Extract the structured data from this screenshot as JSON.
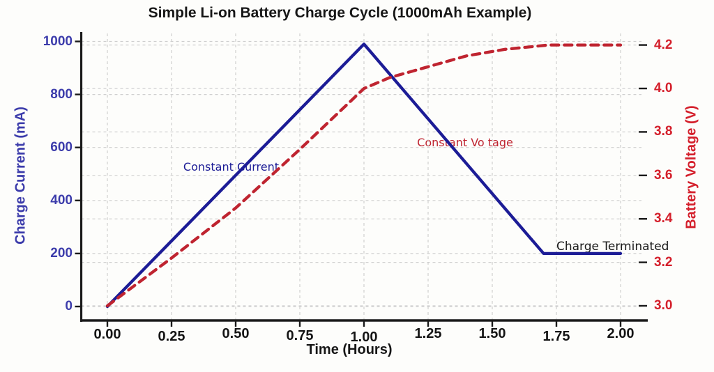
{
  "figure": {
    "title": "Simple Li-on Battery Charge Cycle (1000mAh Example)"
  },
  "chart_data": {
    "type": "line",
    "title": "Simple Li-on Battery Charge Cycle (1000mAh Example)",
    "xlabel": "Time (Hours)",
    "ylabel_left": "Charge Current (mA)",
    "ylabel_right": "Battery Voltage (V)",
    "x_tick_labels": [
      "0.00",
      "0.25",
      "0.50",
      "0.75",
      "1.00",
      "1.25",
      "1.50",
      "1.75",
      "2.00"
    ],
    "x_tick_values": [
      0,
      0.25,
      0.5,
      0.75,
      1.0,
      1.25,
      1.5,
      1.75,
      2.0
    ],
    "y_left_tick_labels": [
      "0",
      "200",
      "400",
      "600",
      "800",
      "1000"
    ],
    "y_left_tick_values": [
      0,
      200,
      400,
      600,
      800,
      1000
    ],
    "y_right_tick_labels": [
      "3.0",
      "3.2",
      "3.4",
      "3.6",
      "3.8",
      "4.0",
      "4.2"
    ],
    "y_right_tick_values": [
      3.0,
      3.2,
      3.4,
      3.6,
      3.8,
      4.0,
      4.2
    ],
    "xlim": [
      0,
      2.0
    ],
    "ylim_left": [
      0,
      1000
    ],
    "ylim_right": [
      3.0,
      4.2
    ],
    "grid": true,
    "legend_position": "none",
    "colors": {
      "current_line": "#1c1c96",
      "voltage_line": "#bf2430",
      "left_axis_text": "#3c3cab",
      "right_axis_text": "#d41f2b",
      "annotation_black": "#1a1a1a",
      "grid": "#cfcfcf",
      "spine": "#1a1a1a"
    },
    "series": [
      {
        "name": "Charge Current",
        "axis": "left",
        "unit": "mA",
        "style": "solid",
        "color": "#1c1c96",
        "points": [
          [
            0,
            0
          ],
          [
            1.0,
            990
          ],
          [
            1.7,
            200
          ],
          [
            2.0,
            200
          ]
        ]
      },
      {
        "name": "Battery Voltage",
        "axis": "right",
        "unit": "V",
        "style": "dashed",
        "color": "#bf2430",
        "points": [
          [
            0,
            3.0
          ],
          [
            0.25,
            3.22
          ],
          [
            0.5,
            3.45
          ],
          [
            0.75,
            3.72
          ],
          [
            1.0,
            4.0
          ],
          [
            1.1,
            4.05
          ],
          [
            1.25,
            4.1
          ],
          [
            1.4,
            4.15
          ],
          [
            1.55,
            4.18
          ],
          [
            1.72,
            4.2
          ],
          [
            2.0,
            4.2
          ]
        ]
      }
    ],
    "annotations": [
      {
        "text": "Constant Current",
        "x": 0.296,
        "y_axis": "left",
        "y": 520,
        "color": "#1c1c96",
        "size": 16
      },
      {
        "text": "Constant Vo tage",
        "x": 1.207,
        "y_axis": "left",
        "y": 612,
        "color": "#bf2430",
        "size": 16
      },
      {
        "text": "Charge Terminated",
        "x": 1.75,
        "y_axis": "left",
        "y": 218,
        "color": "#1a1a1a",
        "size": 17
      }
    ]
  }
}
